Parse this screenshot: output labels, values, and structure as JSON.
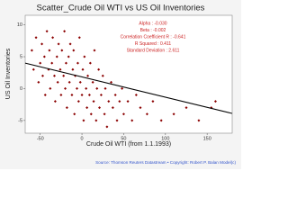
{
  "chart_data": {
    "type": "scatter",
    "title": "Scatter_Crude Oil WTI vs US Oil Inventories",
    "x_label": "Crude Oil WTI (from 1.1.1993)",
    "y_label": "US Oil Inventories",
    "annotations": [
      "Alpha : -0.030",
      "Beta : -0.002",
      "Correlation Coefficient R : -0.641",
      "R Squared : 0.411",
      "Standard Deviation : 2.611"
    ],
    "source": "Source: Thomson Reuters Datastream • Copyright: Robert P. Balan Model(c)",
    "xlim": [
      -68,
      180
    ],
    "ylim": [
      -7,
      11.5
    ],
    "xticks": [
      -50,
      0,
      50,
      100,
      150
    ],
    "yticks": [
      -5,
      0,
      5,
      10
    ],
    "color": "#8b0000",
    "trendline": {
      "color": "#000000",
      "x": [
        -68,
        180
      ],
      "y": [
        4,
        -3.9
      ]
    },
    "x": [
      -60,
      -58,
      -55,
      -52,
      -50,
      -48,
      -47,
      -45,
      -44,
      -42,
      -40,
      -39,
      -38,
      -36,
      -35,
      -33,
      -32,
      -30,
      -29,
      -28,
      -26,
      -25,
      -24,
      -22,
      -21,
      -20,
      -19,
      -18,
      -16,
      -15,
      -14,
      -12,
      -11,
      -10,
      -9,
      -8,
      -6,
      -5,
      -4,
      -3,
      -2,
      0,
      1,
      2,
      3,
      5,
      6,
      7,
      9,
      10,
      11,
      13,
      14,
      15,
      17,
      18,
      20,
      21,
      23,
      25,
      27,
      28,
      30,
      32,
      35,
      37,
      40,
      42,
      45,
      48,
      50,
      55,
      60,
      65,
      70,
      78,
      85,
      95,
      110,
      125,
      140,
      155,
      160
    ],
    "y": [
      6,
      3,
      8,
      1,
      4,
      7,
      2,
      5,
      -1,
      9,
      3,
      6,
      0,
      4,
      8,
      2,
      -2,
      5,
      1,
      7,
      3,
      -1,
      6,
      2,
      9,
      0,
      4,
      -3,
      5,
      1,
      7,
      -1,
      3,
      6,
      -4,
      2,
      0,
      4,
      -2,
      8,
      1,
      -1,
      3,
      -5,
      5,
      0,
      -3,
      2,
      -1,
      4,
      -4,
      1,
      -2,
      6,
      -5,
      0,
      3,
      -3,
      -1,
      2,
      -4,
      0,
      -6,
      -2,
      1,
      -3,
      -1,
      -5,
      -2,
      0,
      -4,
      -2,
      -5,
      -1,
      -3,
      -4,
      -2,
      -5,
      -4,
      -3,
      -5,
      -3,
      -2
    ]
  }
}
